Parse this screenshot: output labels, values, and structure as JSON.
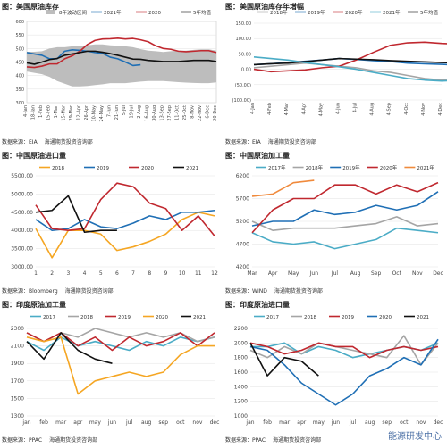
{
  "watermark": "能源研发中心",
  "chart_data": [
    {
      "type": "line",
      "title": "图：美国原油库存",
      "source_label": "数据来源：",
      "source": "EIA",
      "org": "海通期货投资咨询部",
      "y_ticks": [
        "600",
        "550",
        "500",
        "450",
        "400",
        "350",
        "300"
      ],
      "ylim": [
        300,
        600
      ],
      "x_ticks": [
        "4-Jan",
        "18-Jan",
        "1-Feb",
        "15-Feb",
        "1-Mar",
        "15-Mar",
        "29-Mar",
        "12-Apr",
        "26-Apr",
        "10-May",
        "24-May",
        "7-Jun",
        "21-Jun",
        "5-Jul",
        "19-Jul",
        "2-Aug",
        "16-Aug",
        "30-Aug",
        "13-Sep",
        "27-Sep",
        "11-Oct",
        "25-Oct",
        "8-Nov",
        "22-Nov",
        "6-Dec",
        "20-Dec"
      ],
      "band": {
        "name": "8年波动区间",
        "upper": [
          488,
          488,
          490,
          500,
          505,
          505,
          508,
          510,
          512,
          515,
          515,
          512,
          510,
          508,
          505,
          498,
          492,
          490,
          487,
          490,
          492,
          492,
          495,
          497,
          497,
          492
        ],
        "lower": [
          415,
          410,
          405,
          395,
          380,
          370,
          360,
          360,
          362,
          365,
          368,
          372,
          372,
          372,
          375,
          378,
          380,
          380,
          380,
          378,
          376,
          374,
          373,
          372,
          372,
          375
        ]
      },
      "series": [
        {
          "name": "2021年",
          "color": "#1f6fb5",
          "values": [
            485,
            480,
            475,
            462,
            462,
            490,
            495,
            493,
            490,
            485,
            482,
            468,
            462,
            450,
            437,
            440
          ]
        },
        {
          "name": "2020",
          "color": "#c0282f",
          "values": [
            432,
            430,
            435,
            443,
            443,
            462,
            473,
            490,
            515,
            530,
            535,
            536,
            538,
            535,
            537,
            532,
            525,
            510,
            500,
            497,
            490,
            488,
            490,
            492,
            492,
            485
          ]
        },
        {
          "name": "5年均值",
          "color": "#111111",
          "values": [
            447,
            442,
            450,
            459,
            463,
            475,
            480,
            485,
            490,
            490,
            486,
            481,
            475,
            468,
            461,
            460,
            456,
            454,
            452,
            452,
            452,
            454,
            456,
            456,
            456,
            452
          ]
        }
      ]
    },
    {
      "type": "line",
      "title": "图：美国原油库存年增幅",
      "source_label": "数据来源：",
      "source": "EIA",
      "org": "海通期货投资咨询部",
      "y_ticks": [
        "150.00",
        "100.00",
        "50.00",
        "0.00",
        "(50.00)",
        "(100.00)"
      ],
      "ylim": [
        -100,
        150
      ],
      "x_ticks": [
        "4-Jan",
        "4-Feb",
        "4-Mar",
        "4-Apr",
        "4-May",
        "4-Jun",
        "4-Jul",
        "4-Aug",
        "4-Sep",
        "4-Oct",
        "4-Nov",
        "4-Dec"
      ],
      "series": [
        {
          "name": "2018年",
          "color": "#a5a5a5",
          "values": [
            5,
            10,
            15,
            20,
            15,
            10,
            5,
            -5,
            -10,
            -20,
            -30,
            -35,
            -30,
            -25,
            -20,
            -15
          ]
        },
        {
          "name": "2019年",
          "color": "#1f6fb5",
          "values": [
            15,
            18,
            22,
            26,
            30,
            35,
            32,
            28,
            25,
            20,
            18,
            16,
            14,
            10,
            6,
            4,
            6,
            8,
            5,
            3,
            2,
            0,
            -3,
            -5,
            -2,
            0,
            -5
          ]
        },
        {
          "name": "2020年",
          "color": "#c0282f",
          "values": [
            0,
            -8,
            -5,
            -2,
            5,
            10,
            30,
            55,
            78,
            86,
            88,
            84,
            82,
            80,
            83,
            80,
            78,
            76,
            73,
            72,
            69,
            70,
            68,
            66,
            65,
            64
          ]
        },
        {
          "name": "2021年",
          "color": "#4bacc6",
          "values": [
            40,
            35,
            30,
            22,
            15,
            8,
            0,
            -10,
            -20,
            -30,
            -35,
            -38,
            -36,
            -40
          ]
        },
        {
          "name": "5年均值",
          "color": "#111111",
          "values": [
            15,
            18,
            20,
            25,
            30,
            35,
            33,
            31,
            28,
            26,
            24,
            22,
            20,
            18,
            16,
            14,
            12,
            10,
            8,
            6,
            5,
            4,
            3,
            2,
            1,
            0
          ]
        }
      ]
    },
    {
      "type": "line",
      "title": "图：中国原油进口量",
      "source_label": "数据来源：",
      "source": "Bloomberg",
      "org": "海通期货投资咨询部",
      "y_ticks": [
        "5500.00",
        "5000.00",
        "4500.00",
        "4000.00",
        "3500.00",
        "3000.00"
      ],
      "ylim": [
        3000,
        5500
      ],
      "x_ticks": [
        "1",
        "2",
        "3",
        "4",
        "5",
        "6",
        "7",
        "8",
        "9",
        "10",
        "11",
        "12"
      ],
      "series": [
        {
          "name": "2018",
          "color": "#f5a623",
          "values": [
            4050,
            3250,
            4000,
            4000,
            3900,
            3450,
            3550,
            3700,
            3900,
            4300,
            4500,
            4400
          ]
        },
        {
          "name": "2019",
          "color": "#1f6fb5",
          "values": [
            4300,
            4000,
            4050,
            4300,
            4100,
            4050,
            4200,
            4400,
            4300,
            4500,
            4500,
            4550
          ]
        },
        {
          "name": "2020",
          "color": "#c0282f",
          "values": [
            4700,
            4050,
            4000,
            4050,
            4850,
            5300,
            5200,
            4750,
            4600,
            4000,
            4400,
            3850
          ]
        },
        {
          "name": "2021",
          "color": "#111111",
          "values": [
            4500,
            4550,
            4950,
            3950,
            4000,
            4000
          ]
        }
      ]
    },
    {
      "type": "line",
      "title": "图：中国原油加工量",
      "source_label": "数据来源：",
      "source": "WIND",
      "org": "海通期货投资咨询部",
      "y_ticks": [
        "6200",
        "5700",
        "5200",
        "4700",
        "4200"
      ],
      "ylim": [
        4200,
        6200
      ],
      "x_ticks": [
        "Mar",
        "Apr",
        "May",
        "Jun",
        "Jul",
        "Aug",
        "Sep",
        "Oct",
        "Nov",
        "Dec"
      ],
      "series": [
        {
          "name": "2017年",
          "color": "#4bacc6",
          "values": [
            4950,
            4750,
            4700,
            4750,
            4600,
            4700,
            4800,
            5050,
            5000,
            4950
          ]
        },
        {
          "name": "2018年",
          "color": "#a5a5a5",
          "values": [
            5200,
            5000,
            5050,
            5050,
            5050,
            5100,
            5150,
            5300,
            5100,
            5150
          ]
        },
        {
          "name": "2019年",
          "color": "#1f6fb5",
          "values": [
            5100,
            5200,
            5200,
            5450,
            5350,
            5400,
            5550,
            5450,
            5550,
            5850
          ]
        },
        {
          "name": "2020年",
          "color": "#c0282f",
          "values": [
            4950,
            5450,
            5700,
            5700,
            6000,
            6000,
            5800,
            6000,
            5850,
            6050
          ]
        },
        {
          "name": "2021年",
          "color": "#f08a3c",
          "values": [
            5750,
            5800,
            6050,
            6100
          ]
        }
      ]
    },
    {
      "type": "line",
      "title": "图：印度原油加工量",
      "source_label": "数据来源：",
      "source": "PPAC",
      "org": "海通期货投资咨询部",
      "y_ticks": [
        "2300",
        "2100",
        "1900",
        "1700",
        "1500",
        "1300"
      ],
      "ylim": [
        1300,
        2300
      ],
      "x_ticks": [
        "jan",
        "feb",
        "mar",
        "apr",
        "may",
        "jun",
        "jul",
        "aug",
        "sep",
        "oct",
        "nov",
        "dec"
      ],
      "series": [
        {
          "name": "2017",
          "color": "#4bacc6",
          "values": [
            2150,
            2050,
            2200,
            2100,
            2150,
            2100,
            2050,
            2150,
            2100,
            2200,
            2150,
            2200
          ]
        },
        {
          "name": "2018",
          "color": "#a5a5a5",
          "values": [
            2250,
            2150,
            2250,
            2200,
            2300,
            2250,
            2200,
            2250,
            2200,
            2250,
            2150,
            2200
          ]
        },
        {
          "name": "2019",
          "color": "#c0282f",
          "values": [
            2250,
            2150,
            2250,
            2100,
            2200,
            2050,
            2200,
            2100,
            2150,
            2250,
            2100,
            2250
          ]
        },
        {
          "name": "2020",
          "color": "#f5a623",
          "values": [
            2200,
            2150,
            2200,
            1550,
            1700,
            1750,
            1800,
            1750,
            1800,
            2000,
            2100,
            2100
          ]
        },
        {
          "name": "2021",
          "color": "#111111",
          "values": [
            2150,
            1950,
            2250,
            2050,
            1950,
            1900
          ]
        }
      ]
    },
    {
      "type": "line",
      "title": "图：印度原油进口量",
      "source_label": "数据来源：",
      "source": "PPAC",
      "org": "海通期货投资咨询部",
      "y_ticks": [
        "2200",
        "2000",
        "1800",
        "1600",
        "1400",
        "1200",
        "1000"
      ],
      "ylim": [
        1000,
        2200
      ],
      "x_ticks": [
        "jan",
        "feb",
        "mar",
        "apr",
        "may",
        "jun",
        "jul",
        "aug",
        "sep",
        "oct",
        "nov",
        "dec"
      ],
      "series": [
        {
          "name": "2017",
          "color": "#4bacc6",
          "values": [
            1950,
            1950,
            2000,
            1850,
            1950,
            1900,
            1800,
            1850,
            1900,
            1950,
            1900,
            2000
          ]
        },
        {
          "name": "2018",
          "color": "#a5a5a5",
          "values": [
            1900,
            1800,
            1950,
            1850,
            2000,
            1950,
            1900,
            1850,
            1800,
            2100,
            1700,
            2000
          ]
        },
        {
          "name": "2019",
          "color": "#c0282f",
          "values": [
            2000,
            1950,
            1850,
            1900,
            2000,
            1950,
            1950,
            1800,
            1900,
            1950,
            1900,
            1950
          ]
        },
        {
          "name": "2020",
          "color": "#1f6fb5",
          "values": [
            1950,
            1900,
            1700,
            1450,
            1300,
            1150,
            1300,
            1550,
            1650,
            1800,
            1700,
            2050
          ]
        },
        {
          "name": "2021",
          "color": "#111111",
          "values": [
            2000,
            1550,
            1800,
            1750,
            1550
          ]
        }
      ]
    }
  ]
}
